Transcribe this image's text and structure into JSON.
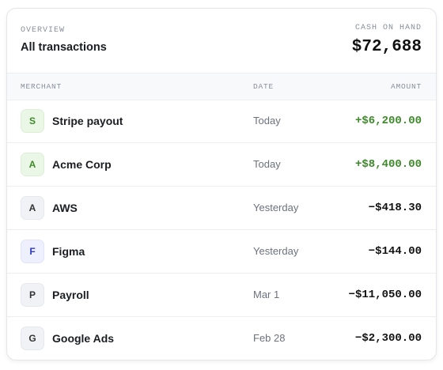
{
  "header": {
    "eyebrow": "OVERVIEW",
    "title": "All transactions",
    "total_label": "CASH ON HAND",
    "total": "$72,688"
  },
  "table": {
    "columns": [
      "MERCHANT",
      "DATE",
      "AMOUNT"
    ],
    "rows": [
      {
        "initial": "S",
        "merchant": "Stripe payout",
        "date": "Today",
        "amount": "+$6,200.00"
      },
      {
        "initial": "A",
        "merchant": "Acme Corp",
        "date": "Today",
        "amount": "+$8,400.00"
      },
      {
        "initial": "A",
        "merchant": "AWS",
        "date": "Yesterday",
        "amount": "−$418.30"
      },
      {
        "initial": "F",
        "merchant": "Figma",
        "date": "Yesterday",
        "amount": "−$144.00"
      },
      {
        "initial": "P",
        "merchant": "Payroll",
        "date": "Mar 1",
        "amount": "−$11,050.00"
      },
      {
        "initial": "G",
        "merchant": "Google Ads",
        "date": "Feb 28",
        "amount": "−$2,300.00"
      }
    ]
  }
}
